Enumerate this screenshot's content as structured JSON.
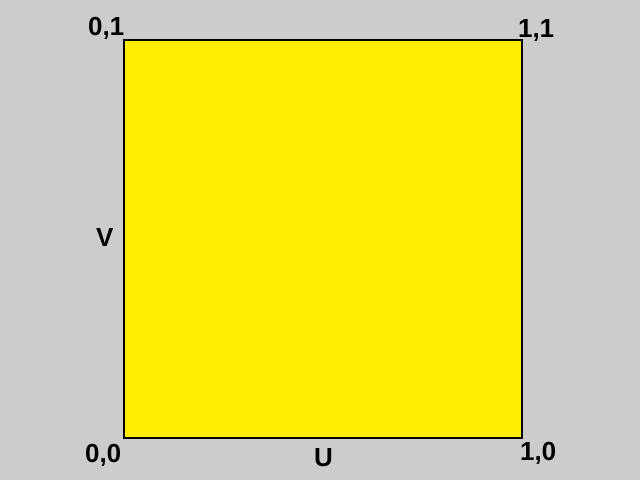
{
  "colors": {
    "background": "#cccccc",
    "square_fill": "#ffee00",
    "square_border": "#000000",
    "text": "#000000"
  },
  "corners": {
    "top_left": "0,1",
    "top_right": "1,1",
    "bottom_left": "0,0",
    "bottom_right": "1,0"
  },
  "axes": {
    "vertical": "V",
    "horizontal": "U"
  }
}
